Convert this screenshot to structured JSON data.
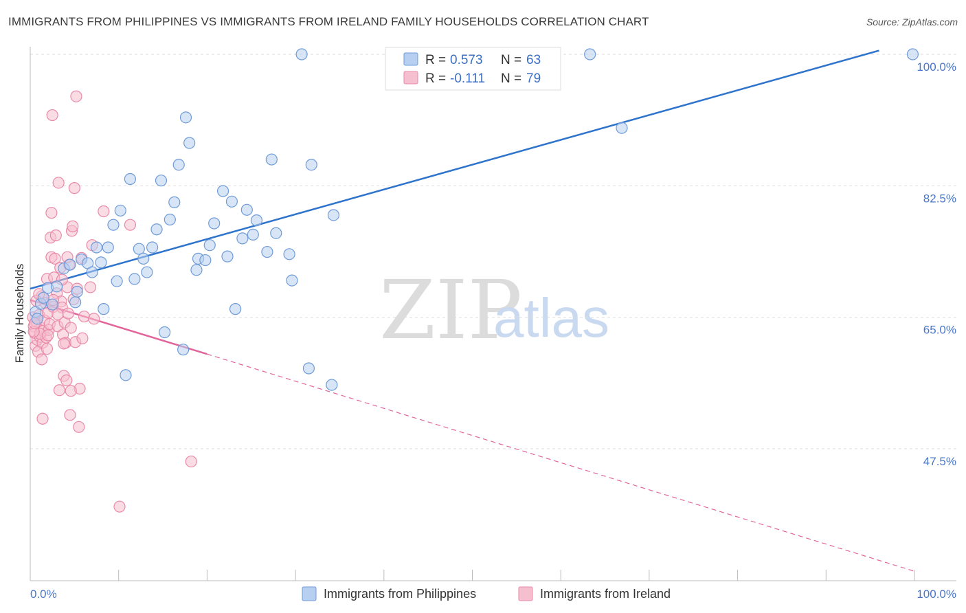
{
  "title": "IMMIGRANTS FROM PHILIPPINES VS IMMIGRANTS FROM IRELAND FAMILY HOUSEHOLDS CORRELATION CHART",
  "source": "Source: ZipAtlas.com",
  "watermark": {
    "zip": "ZIP",
    "atlas": "atlas"
  },
  "colors": {
    "blue_fill": "#b7cff0",
    "blue_stroke": "#6f9bd8",
    "blue_line": "#2e74cc",
    "pink_fill": "#f6bfd0",
    "pink_stroke": "#e98aa9",
    "pink_line": "#e2649a",
    "grid": "#dddddd",
    "axis_text": "#4a78c9"
  },
  "legend": {
    "items": [
      {
        "r_label": "R = ",
        "r_value": "0.573",
        "n_label": "N = ",
        "n_value": "63",
        "color": "blue"
      },
      {
        "r_label": "R = ",
        "r_value": "-0.111",
        "n_label": "N = ",
        "n_value": "79",
        "color": "pink"
      }
    ]
  },
  "bottom_legend": [
    "Immigrants from Philippines",
    "Immigrants from Ireland"
  ],
  "chart_data": {
    "type": "scatter",
    "title": "IMMIGRANTS FROM PHILIPPINES VS IMMIGRANTS FROM IRELAND FAMILY HOUSEHOLDS CORRELATION CHART",
    "xlabel": "",
    "ylabel": "Family Households",
    "xlim": [
      0,
      100
    ],
    "ylim": [
      32,
      102
    ],
    "x_tick_labels": [
      "0.0%",
      "100.0%"
    ],
    "y_ticks": [
      47.5,
      65.0,
      82.5,
      100.0
    ],
    "y_tick_labels": [
      "47.5%",
      "65.0%",
      "82.5%",
      "100.0%"
    ],
    "series": [
      {
        "name": "Immigrants from Philippines",
        "color": "blue",
        "r": 0.573,
        "n": 63,
        "trend": {
          "x": [
            0,
            96
          ],
          "y": [
            68.8,
            100.5
          ],
          "dashed_to": null
        },
        "points": [
          [
            0.6,
            65.7
          ],
          [
            0.8,
            64.8
          ],
          [
            1.2,
            66.8
          ],
          [
            1.5,
            67.6
          ],
          [
            2.0,
            68.9
          ],
          [
            2.5,
            66.7
          ],
          [
            3.0,
            69.1
          ],
          [
            3.8,
            71.5
          ],
          [
            4.5,
            72.0
          ],
          [
            5.3,
            68.4
          ],
          [
            5.8,
            72.7
          ],
          [
            6.5,
            72.2
          ],
          [
            7.0,
            71.0
          ],
          [
            7.5,
            74.3
          ],
          [
            8.0,
            72.3
          ],
          [
            8.3,
            66.1
          ],
          [
            8.8,
            74.3
          ],
          [
            9.4,
            77.3
          ],
          [
            9.8,
            69.8
          ],
          [
            10.2,
            79.2
          ],
          [
            10.8,
            57.3
          ],
          [
            11.3,
            83.4
          ],
          [
            11.8,
            70.1
          ],
          [
            12.3,
            74.1
          ],
          [
            12.8,
            72.8
          ],
          [
            13.2,
            71.0
          ],
          [
            13.8,
            74.3
          ],
          [
            14.3,
            76.7
          ],
          [
            14.8,
            83.2
          ],
          [
            15.2,
            63.0
          ],
          [
            15.8,
            78.0
          ],
          [
            16.3,
            80.3
          ],
          [
            16.8,
            85.3
          ],
          [
            17.3,
            60.7
          ],
          [
            17.6,
            91.6
          ],
          [
            18.0,
            88.2
          ],
          [
            18.8,
            71.3
          ],
          [
            19.0,
            72.8
          ],
          [
            19.8,
            72.6
          ],
          [
            20.3,
            74.6
          ],
          [
            20.8,
            77.5
          ],
          [
            21.8,
            81.8
          ],
          [
            22.3,
            73.1
          ],
          [
            22.8,
            80.4
          ],
          [
            23.2,
            66.1
          ],
          [
            24.0,
            75.5
          ],
          [
            24.5,
            79.3
          ],
          [
            25.2,
            76.0
          ],
          [
            25.6,
            77.9
          ],
          [
            26.8,
            73.7
          ],
          [
            27.3,
            86.0
          ],
          [
            27.8,
            76.2
          ],
          [
            29.3,
            73.4
          ],
          [
            29.6,
            69.9
          ],
          [
            30.7,
            100.0
          ],
          [
            31.5,
            58.2
          ],
          [
            31.8,
            85.3
          ],
          [
            34.1,
            56.0
          ],
          [
            34.3,
            78.6
          ],
          [
            63.3,
            100.0
          ],
          [
            66.9,
            90.2
          ],
          [
            99.8,
            100.0
          ],
          [
            5.1,
            67.0
          ]
        ]
      },
      {
        "name": "Immigrants from Ireland",
        "color": "pink",
        "r": -0.111,
        "n": 79,
        "trend": {
          "x": [
            0,
            20
          ],
          "y": [
            67.3,
            60.1
          ],
          "dashed_to": [
            100,
            31.2
          ]
        },
        "points": [
          [
            0.3,
            65.0
          ],
          [
            0.4,
            63.8
          ],
          [
            0.5,
            62.9
          ],
          [
            0.6,
            61.2
          ],
          [
            0.7,
            64.4
          ],
          [
            0.8,
            62.0
          ],
          [
            0.9,
            60.4
          ],
          [
            1.0,
            65.3
          ],
          [
            1.1,
            62.4
          ],
          [
            1.2,
            63.6
          ],
          [
            1.3,
            67.8
          ],
          [
            1.3,
            59.4
          ],
          [
            1.4,
            61.6
          ],
          [
            1.5,
            63.2
          ],
          [
            1.6,
            64.6
          ],
          [
            1.7,
            66.9
          ],
          [
            1.8,
            62.3
          ],
          [
            1.9,
            60.8
          ],
          [
            1.9,
            70.1
          ],
          [
            2.0,
            65.6
          ],
          [
            2.1,
            63.3
          ],
          [
            2.2,
            64.1
          ],
          [
            2.3,
            75.6
          ],
          [
            2.4,
            73.0
          ],
          [
            2.4,
            78.9
          ],
          [
            2.5,
            91.9
          ],
          [
            2.6,
            66.4
          ],
          [
            2.7,
            70.3
          ],
          [
            2.8,
            72.8
          ],
          [
            2.9,
            75.9
          ],
          [
            3.0,
            68.2
          ],
          [
            3.1,
            63.8
          ],
          [
            3.2,
            82.9
          ],
          [
            3.3,
            55.3
          ],
          [
            3.4,
            71.6
          ],
          [
            3.5,
            67.1
          ],
          [
            3.6,
            66.3
          ],
          [
            3.7,
            62.7
          ],
          [
            3.8,
            57.2
          ],
          [
            3.9,
            64.3
          ],
          [
            4.0,
            61.6
          ],
          [
            4.1,
            56.6
          ],
          [
            4.2,
            69.0
          ],
          [
            4.3,
            65.5
          ],
          [
            4.4,
            72.0
          ],
          [
            4.5,
            52.0
          ],
          [
            4.6,
            63.6
          ],
          [
            4.7,
            76.5
          ],
          [
            4.8,
            77.1
          ],
          [
            4.9,
            67.4
          ],
          [
            5.0,
            82.2
          ],
          [
            5.1,
            61.7
          ],
          [
            5.2,
            94.4
          ],
          [
            5.3,
            68.8
          ],
          [
            5.5,
            50.4
          ],
          [
            5.6,
            55.5
          ],
          [
            5.8,
            72.9
          ],
          [
            5.9,
            62.2
          ],
          [
            6.1,
            65.1
          ],
          [
            7.0,
            74.6
          ],
          [
            7.2,
            64.8
          ],
          [
            8.3,
            79.1
          ],
          [
            10.1,
            39.8
          ],
          [
            11.3,
            77.3
          ],
          [
            18.2,
            45.8
          ],
          [
            0.7,
            67.2
          ],
          [
            1.0,
            68.1
          ],
          [
            1.1,
            62.8
          ],
          [
            1.4,
            51.5
          ],
          [
            2.0,
            62.6
          ],
          [
            2.6,
            67.3
          ],
          [
            3.1,
            65.4
          ],
          [
            3.6,
            70.0
          ],
          [
            3.8,
            61.5
          ],
          [
            0.4,
            63.1
          ],
          [
            0.5,
            64.2
          ],
          [
            4.2,
            73.0
          ],
          [
            4.6,
            55.2
          ],
          [
            6.8,
            69.0
          ]
        ]
      }
    ],
    "legend_position": "top-center",
    "grid": true
  }
}
